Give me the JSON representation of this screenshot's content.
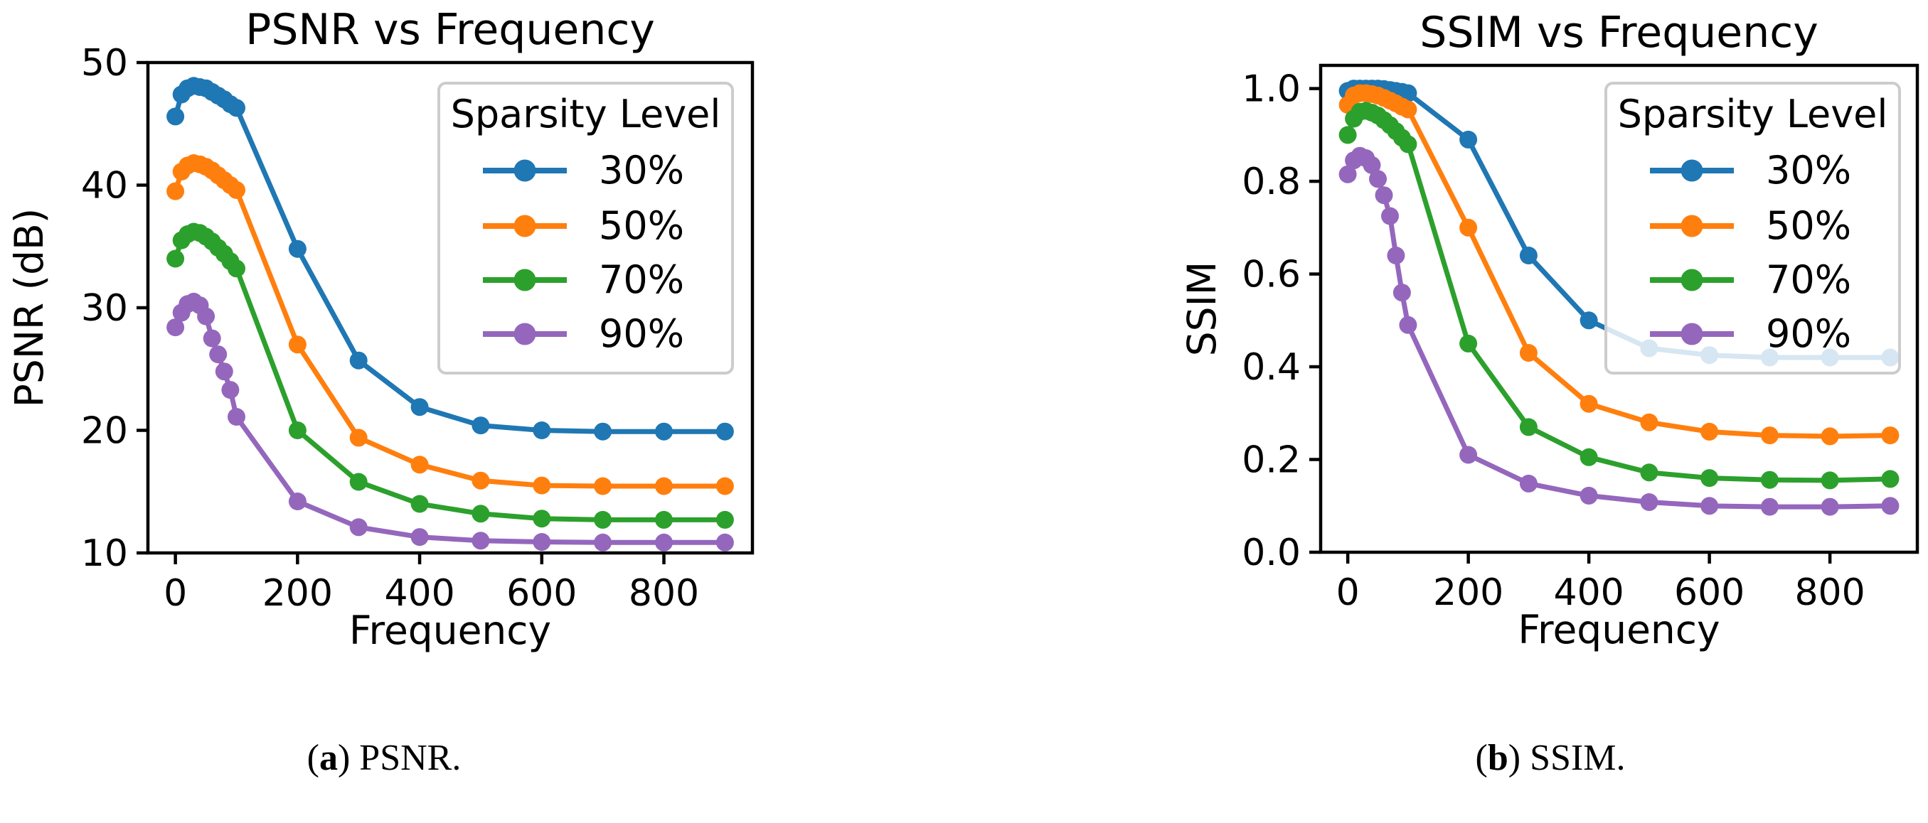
{
  "figure": {
    "background": "#ffffff",
    "frequencies": [
      0,
      10,
      20,
      30,
      40,
      50,
      60,
      70,
      80,
      90,
      100,
      200,
      300,
      400,
      500,
      600,
      700,
      800,
      900
    ],
    "charts": [
      {
        "type": "line",
        "title": "PSNR vs Frequency",
        "xlabel": "Frequency",
        "ylabel": "PSNR (dB)",
        "xlim": [
          -45,
          945
        ],
        "ylim": [
          10,
          50
        ],
        "xticks": [
          0,
          200,
          400,
          600,
          800
        ],
        "yticks": [
          10,
          20,
          30,
          40,
          50
        ],
        "ytick_decimals": 0,
        "grid": false,
        "legend": {
          "title": "Sparsity Level",
          "position": "upper right"
        },
        "series": [
          {
            "name": "30%",
            "color": "#1f77b4",
            "values": [
              45.6,
              47.4,
              47.9,
              48.1,
              48.0,
              47.9,
              47.6,
              47.3,
              47.0,
              46.6,
              46.3,
              34.8,
              25.7,
              21.9,
              20.4,
              20.0,
              19.9,
              19.9,
              19.9
            ]
          },
          {
            "name": "50%",
            "color": "#ff7f0e",
            "values": [
              39.5,
              41.1,
              41.6,
              41.8,
              41.7,
              41.5,
              41.2,
              40.8,
              40.4,
              40.0,
              39.6,
              27.0,
              19.4,
              17.2,
              15.9,
              15.5,
              15.45,
              15.45,
              15.45
            ]
          },
          {
            "name": "70%",
            "color": "#2ca02c",
            "values": [
              34.0,
              35.5,
              36.0,
              36.2,
              36.1,
              35.8,
              35.4,
              34.9,
              34.4,
              33.8,
              33.2,
              20.0,
              15.8,
              14.0,
              13.2,
              12.8,
              12.7,
              12.7,
              12.7
            ]
          },
          {
            "name": "90%",
            "color": "#9467bd",
            "values": [
              28.4,
              29.6,
              30.3,
              30.5,
              30.2,
              29.3,
              27.5,
              26.2,
              24.8,
              23.3,
              21.1,
              14.2,
              12.1,
              11.3,
              11.0,
              10.9,
              10.85,
              10.85,
              10.85
            ]
          }
        ]
      },
      {
        "type": "line",
        "title": "SSIM vs Frequency",
        "xlabel": "Frequency",
        "ylabel": "SSIM",
        "xlim": [
          -45,
          945
        ],
        "ylim": [
          0,
          1.05
        ],
        "xticks": [
          0,
          200,
          400,
          600,
          800
        ],
        "yticks": [
          0.0,
          0.2,
          0.4,
          0.6,
          0.8,
          1.0
        ],
        "ytick_decimals": 1,
        "grid": false,
        "legend": {
          "title": "Sparsity Level",
          "position": "upper right"
        },
        "series": [
          {
            "name": "30%",
            "color": "#1f77b4",
            "values": [
              0.995,
              1.0,
              1.0,
              1.0,
              1.0,
              1.0,
              0.999,
              0.997,
              0.995,
              0.993,
              0.99,
              0.89,
              0.64,
              0.5,
              0.44,
              0.425,
              0.42,
              0.42,
              0.42
            ]
          },
          {
            "name": "50%",
            "color": "#ff7f0e",
            "values": [
              0.965,
              0.985,
              0.99,
              0.99,
              0.988,
              0.985,
              0.98,
              0.974,
              0.968,
              0.961,
              0.955,
              0.7,
              0.43,
              0.32,
              0.28,
              0.26,
              0.252,
              0.25,
              0.252
            ]
          },
          {
            "name": "70%",
            "color": "#2ca02c",
            "values": [
              0.9,
              0.935,
              0.95,
              0.952,
              0.948,
              0.942,
              0.932,
              0.921,
              0.908,
              0.894,
              0.88,
              0.45,
              0.27,
              0.205,
              0.172,
              0.16,
              0.156,
              0.155,
              0.158
            ]
          },
          {
            "name": "90%",
            "color": "#9467bd",
            "values": [
              0.815,
              0.845,
              0.855,
              0.85,
              0.835,
              0.805,
              0.77,
              0.725,
              0.64,
              0.56,
              0.49,
              0.21,
              0.148,
              0.122,
              0.108,
              0.1,
              0.098,
              0.098,
              0.1
            ]
          }
        ]
      }
    ],
    "captions": [
      {
        "open": "(",
        "letter": "a",
        "close": ")",
        "text": " PSNR."
      },
      {
        "open": "(",
        "letter": "b",
        "close": ")",
        "text": " SSIM."
      }
    ]
  }
}
